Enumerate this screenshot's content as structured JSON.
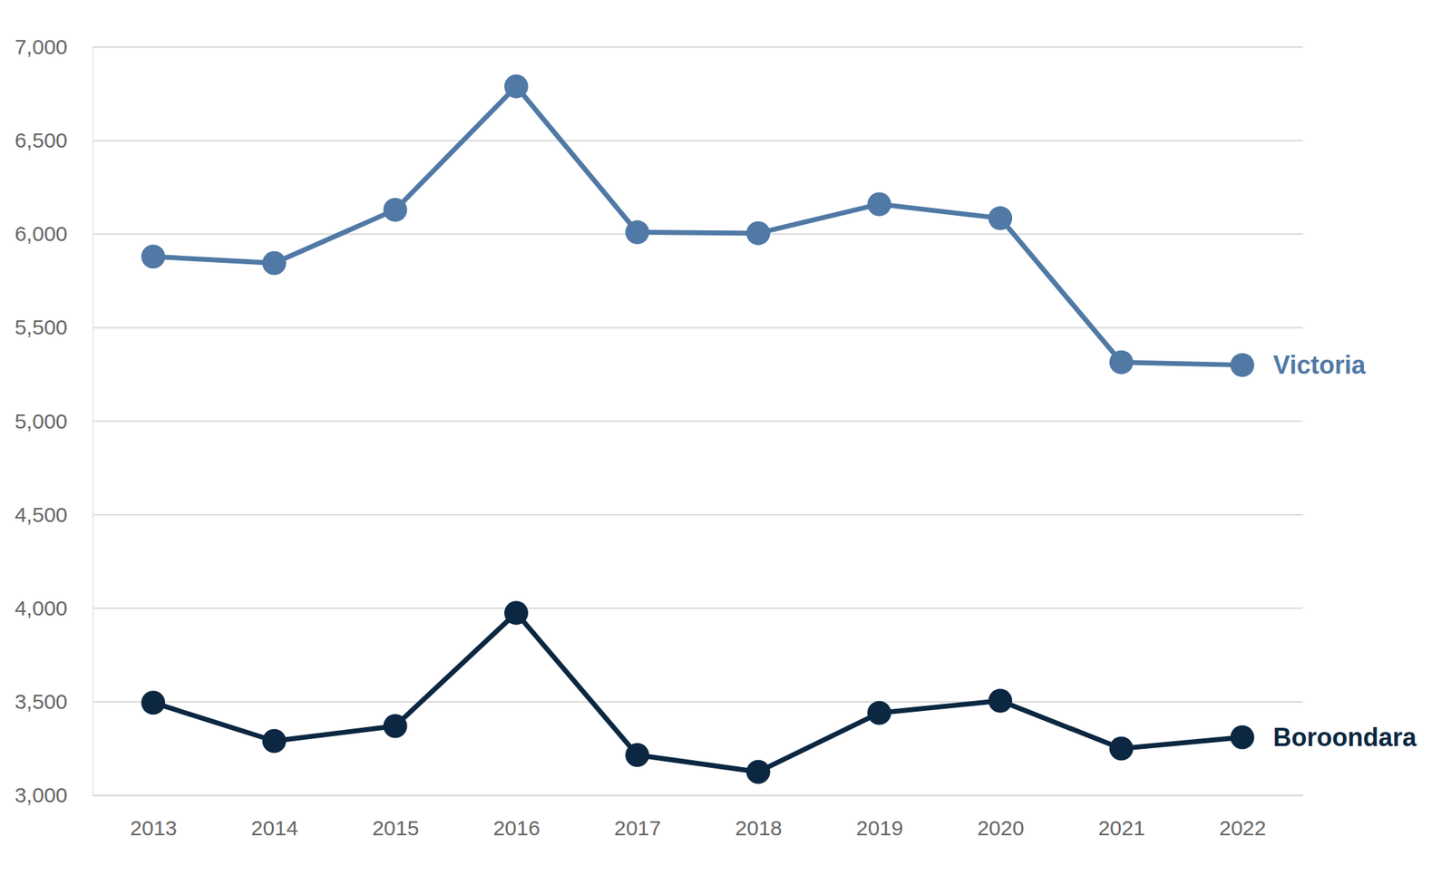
{
  "chart_data": {
    "type": "line",
    "categories": [
      "2013",
      "2014",
      "2015",
      "2016",
      "2017",
      "2018",
      "2019",
      "2020",
      "2021",
      "2022"
    ],
    "series": [
      {
        "name": "Victoria",
        "color": "#5079a5",
        "marker": "circle",
        "values": [
          5880,
          5845,
          6130,
          6790,
          6010,
          6005,
          6160,
          6085,
          5315,
          5300
        ]
      },
      {
        "name": "Boroondara",
        "color": "#0b2741",
        "marker": "circle",
        "values": [
          3495,
          3290,
          3370,
          3975,
          3215,
          3125,
          3440,
          3505,
          3250,
          3310
        ]
      }
    ],
    "ylim": [
      3000,
      7000
    ],
    "yticks": [
      {
        "value": 3000,
        "label": "3,000"
      },
      {
        "value": 3500,
        "label": "3,500"
      },
      {
        "value": 4000,
        "label": "4,000"
      },
      {
        "value": 4500,
        "label": "4,500"
      },
      {
        "value": 5000,
        "label": "5,000"
      },
      {
        "value": 5500,
        "label": "5,500"
      },
      {
        "value": 6000,
        "label": "6,000"
      },
      {
        "value": 6500,
        "label": "6,500"
      },
      {
        "value": 7000,
        "label": "7,000"
      }
    ],
    "grid": true
  }
}
